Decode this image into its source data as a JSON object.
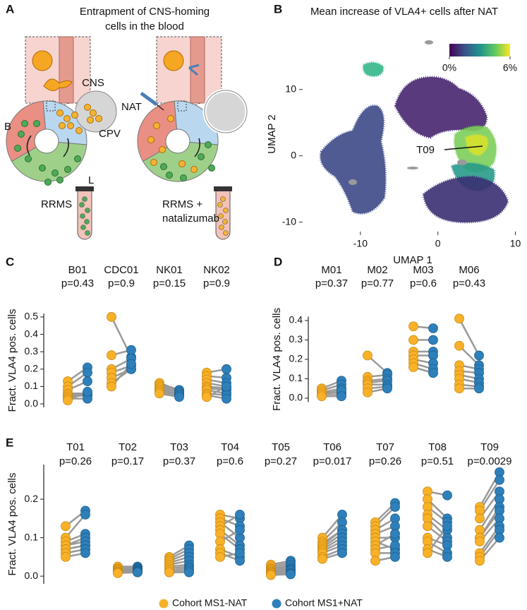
{
  "panel_a": {
    "label": "A",
    "title": [
      "Entrapment of CNS-homing",
      "cells in the blood"
    ],
    "cns": "CNS",
    "b": "B",
    "cpv": "CPV",
    "l": "L",
    "rrms": "RRMS",
    "nat": "NAT",
    "rrms_nat": [
      "RRMS +",
      "natalizumab"
    ]
  },
  "legend": {
    "series": [
      {
        "name": "Cohort MS1-NAT",
        "color": "#f9b128"
      },
      {
        "name": "Cohort MS1+NAT",
        "color": "#2e80ba"
      }
    ]
  },
  "chart_data": [
    {
      "type": "umap",
      "label": "B",
      "title": "Mean increase of VLA4+ cells after NAT",
      "xlabel": "UMAP 1",
      "ylabel": "UMAP 2",
      "xlim": [
        -17,
        10.5
      ],
      "ylim": [
        -11,
        17
      ],
      "xticks": [
        -10,
        0,
        10
      ],
      "yticks": [
        -10,
        0,
        10
      ],
      "annotation": "T09",
      "colorbar": {
        "lim": [
          0,
          6
        ],
        "ticks": [
          {
            "value": 0,
            "label": "0%"
          },
          {
            "value": 6,
            "label": "6%"
          }
        ],
        "colors": [
          "#440154",
          "#3b528b",
          "#21918c",
          "#5ec962",
          "#fde725"
        ]
      }
    },
    {
      "type": "paired",
      "label": "C",
      "ylabel": "Fract. VLA4 pos. cells",
      "ylim": [
        -0.02,
        0.52
      ],
      "yticks": [
        {
          "value": 0,
          "label": "0.0"
        },
        0.1,
        0.2,
        0.3,
        0.4,
        0.5
      ],
      "groups": [
        {
          "name": "B01",
          "p": "p=0.43",
          "pre": [
            0.13,
            0.1,
            0.08,
            0.06,
            0.05,
            0.04,
            0.03,
            0.02
          ],
          "post": [
            0.21,
            0.18,
            0.13,
            0.06,
            0.05,
            0.05,
            0.03,
            0.07
          ]
        },
        {
          "name": "CDC01",
          "p": "p=0.9",
          "pre": [
            0.5,
            0.28,
            0.2,
            0.18,
            0.15,
            0.12,
            0.1
          ],
          "post": [
            0.27,
            0.31,
            0.26,
            0.22,
            0.2,
            0.2,
            0.23
          ]
        },
        {
          "name": "NK01",
          "p": "p=0.15",
          "pre": [
            0.12,
            0.11,
            0.1,
            0.09,
            0.08,
            0.08,
            0.07,
            0.06
          ],
          "post": [
            0.08,
            0.08,
            0.07,
            0.06,
            0.06,
            0.05,
            0.05,
            0.04
          ]
        },
        {
          "name": "NK02",
          "p": "p=0.9",
          "pre": [
            0.18,
            0.16,
            0.14,
            0.12,
            0.1,
            0.09,
            0.08,
            0.06,
            0.05,
            0.04
          ],
          "post": [
            0.2,
            0.15,
            0.12,
            0.1,
            0.09,
            0.08,
            0.06,
            0.05,
            0.03,
            0.1
          ]
        }
      ]
    },
    {
      "type": "paired",
      "label": "D",
      "ylabel": "Fract. VLA4 pos. cells",
      "ylim": [
        -0.02,
        0.42
      ],
      "yticks": [
        {
          "value": 0,
          "label": "0.0"
        },
        0.1,
        0.2,
        0.3,
        0.4
      ],
      "groups": [
        {
          "name": "M01",
          "p": "p=0.37",
          "pre": [
            0.05,
            0.04,
            0.03,
            0.03,
            0.02,
            0.02,
            0.01
          ],
          "post": [
            0.09,
            0.07,
            0.05,
            0.03,
            0.02,
            0.04,
            0.01
          ]
        },
        {
          "name": "M02",
          "p": "p=0.77",
          "pre": [
            0.22,
            0.11,
            0.09,
            0.08,
            0.07,
            0.05,
            0.03
          ],
          "post": [
            0.13,
            0.12,
            0.1,
            0.09,
            0.07,
            0.06,
            0.05
          ]
        },
        {
          "name": "M03",
          "p": "p=0.6",
          "pre": [
            0.37,
            0.3,
            0.24,
            0.22,
            0.2,
            0.18,
            0.16
          ],
          "post": [
            0.36,
            0.3,
            0.24,
            0.22,
            0.18,
            0.15,
            0.13
          ]
        },
        {
          "name": "M06",
          "p": "p=0.43",
          "pre": [
            0.41,
            0.27,
            0.17,
            0.14,
            0.12,
            0.1,
            0.07,
            0.05
          ],
          "post": [
            0.22,
            0.17,
            0.15,
            0.13,
            0.1,
            0.08,
            0.06,
            0.05
          ]
        }
      ]
    },
    {
      "type": "paired",
      "label": "E",
      "ylabel": "Fract. VLA4 pos. cells",
      "ylim": [
        -0.02,
        0.29
      ],
      "yticks": [
        {
          "value": 0,
          "label": "0.0"
        },
        0.1,
        0.2
      ],
      "groups": [
        {
          "name": "T01",
          "p": "p=0.26",
          "pre": [
            0.13,
            0.1,
            0.09,
            0.08,
            0.08,
            0.07,
            0.07,
            0.06,
            0.06,
            0.05
          ],
          "post": [
            0.17,
            0.16,
            0.11,
            0.1,
            0.09,
            0.08,
            0.08,
            0.07,
            0.07,
            0.06
          ]
        },
        {
          "name": "T02",
          "p": "p=0.17",
          "pre": [
            0.025,
            0.02,
            0.02,
            0.018,
            0.015,
            0.015,
            0.012,
            0.01,
            0.01,
            0.008
          ],
          "post": [
            0.025,
            0.022,
            0.02,
            0.018,
            0.016,
            0.015,
            0.013,
            0.012,
            0.01,
            0.01
          ]
        },
        {
          "name": "T03",
          "p": "p=0.37",
          "pre": [
            0.05,
            0.045,
            0.04,
            0.035,
            0.03,
            0.025,
            0.02,
            0.015,
            0.01,
            0.01
          ],
          "post": [
            0.08,
            0.07,
            0.06,
            0.05,
            0.04,
            0.03,
            0.025,
            0.02,
            0.015,
            0.01
          ]
        },
        {
          "name": "T04",
          "p": "p=0.6",
          "pre": [
            0.16,
            0.15,
            0.14,
            0.13,
            0.12,
            0.11,
            0.09,
            0.07,
            0.06,
            0.05
          ],
          "post": [
            0.15,
            0.13,
            0.1,
            0.16,
            0.08,
            0.07,
            0.12,
            0.05,
            0.04,
            0.06
          ]
        },
        {
          "name": "T05",
          "p": "p=0.27",
          "pre": [
            0.03,
            0.025,
            0.02,
            0.018,
            0.015,
            0.012,
            0.01,
            0.008,
            0.005,
            0.003
          ],
          "post": [
            0.04,
            0.035,
            0.03,
            0.025,
            0.02,
            0.018,
            0.015,
            0.01,
            0.007,
            0.005
          ]
        },
        {
          "name": "T06",
          "p": "p=0.017",
          "pre": [
            0.1,
            0.09,
            0.085,
            0.08,
            0.075,
            0.07,
            0.065,
            0.06,
            0.05,
            0.045
          ],
          "post": [
            0.16,
            0.14,
            0.12,
            0.12,
            0.11,
            0.1,
            0.09,
            0.08,
            0.07,
            0.06
          ]
        },
        {
          "name": "T07",
          "p": "p=0.26",
          "pre": [
            0.14,
            0.13,
            0.12,
            0.11,
            0.1,
            0.09,
            0.08,
            0.07,
            0.06,
            0.04
          ],
          "post": [
            0.19,
            0.18,
            0.15,
            0.13,
            0.1,
            0.07,
            0.11,
            0.08,
            0.06,
            0.05
          ]
        },
        {
          "name": "T08",
          "p": "p=0.51",
          "pre": [
            0.22,
            0.2,
            0.18,
            0.16,
            0.15,
            0.13,
            0.1,
            0.09,
            0.07,
            0.06
          ],
          "post": [
            0.21,
            0.15,
            0.14,
            0.12,
            0.1,
            0.09,
            0.08,
            0.06,
            0.05,
            0.13
          ]
        },
        {
          "name": "T09",
          "p": "p=0.0029",
          "pre": [
            0.18,
            0.17,
            0.15,
            0.12,
            0.1,
            0.1,
            0.09,
            0.06,
            0.05,
            0.04
          ],
          "post": [
            0.27,
            0.25,
            0.22,
            0.2,
            0.18,
            0.17,
            0.15,
            0.13,
            0.12,
            0.1
          ]
        }
      ]
    }
  ]
}
